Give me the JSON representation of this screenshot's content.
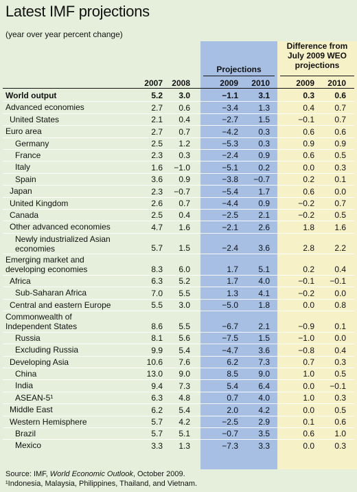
{
  "title": "Latest IMF projections",
  "subtitle": "(year over year percent change)",
  "projections_header": "Projections",
  "difference_header": [
    "Difference from",
    "July 2009 WEO",
    "projections"
  ],
  "years": [
    "2007",
    "2008",
    "2009",
    "2010",
    "2009",
    "2010"
  ],
  "rows": [
    {
      "label": "World output",
      "indent": 0,
      "bold": true,
      "values": [
        "5.2",
        "3.0",
        "−1.1",
        "3.1",
        "0.3",
        "0.6"
      ]
    },
    {
      "label": "Advanced economies",
      "indent": 0,
      "values": [
        "2.7",
        "0.6",
        "−3.4",
        "1.3",
        "0.4",
        "0.7"
      ]
    },
    {
      "label": "United States",
      "indent": 1,
      "values": [
        "2.1",
        "0.4",
        "−2.7",
        "1.5",
        "−0.1",
        "0.7"
      ]
    },
    {
      "label": "Euro area",
      "indent": 0,
      "values": [
        "2.7",
        "0.7",
        "−4.2",
        "0.3",
        "0.6",
        "0.6"
      ]
    },
    {
      "label": "Germany",
      "indent": 2,
      "values": [
        "2.5",
        "1.2",
        "−5.3",
        "0.3",
        "0.9",
        "0.9"
      ]
    },
    {
      "label": "France",
      "indent": 2,
      "values": [
        "2.3",
        "0.3",
        "−2.4",
        "0.9",
        "0.6",
        "0.5"
      ]
    },
    {
      "label": "Italy",
      "indent": 2,
      "values": [
        "1.6",
        "−1.0",
        "−5.1",
        "0.2",
        "0.0",
        "0.3"
      ]
    },
    {
      "label": "Spain",
      "indent": 2,
      "values": [
        "3.6",
        "0.9",
        "−3.8",
        "−0.7",
        "0.2",
        "0.1"
      ]
    },
    {
      "label": "Japan",
      "indent": 1,
      "values": [
        "2.3",
        "−0.7",
        "−5.4",
        "1.7",
        "0.6",
        "0.0"
      ]
    },
    {
      "label": "United Kingdom",
      "indent": 1,
      "values": [
        "2.6",
        "0.7",
        "−4.4",
        "0.9",
        "−0.2",
        "0.7"
      ]
    },
    {
      "label": "Canada",
      "indent": 1,
      "values": [
        "2.5",
        "0.4",
        "−2.5",
        "2.1",
        "−0.2",
        "0.5"
      ]
    },
    {
      "label": "Other advanced economies",
      "indent": 1,
      "values": [
        "4.7",
        "1.6",
        "−2.1",
        "2.6",
        "1.8",
        "1.6"
      ]
    },
    {
      "label": "Newly industrialized Asian economies",
      "label_lines": [
        "Newly industrialized Asian",
        "economies"
      ],
      "indent": 2,
      "values": [
        "5.7",
        "1.5",
        "−2.4",
        "3.6",
        "2.8",
        "2.2"
      ]
    },
    {
      "label": "Emerging market and developing economies",
      "label_lines": [
        "Emerging market and",
        "developing economies"
      ],
      "indent": 0,
      "values": [
        "8.3",
        "6.0",
        "1.7",
        "5.1",
        "0.2",
        "0.4"
      ]
    },
    {
      "label": "Africa",
      "indent": 1,
      "values": [
        "6.3",
        "5.2",
        "1.7",
        "4.0",
        "−0.1",
        "−0.1"
      ]
    },
    {
      "label": "Sub-Saharan Africa",
      "indent": 2,
      "values": [
        "7.0",
        "5.5",
        "1.3",
        "4.1",
        "−0.2",
        "0.0"
      ]
    },
    {
      "label": "Central and eastern Europe",
      "indent": 1,
      "values": [
        "5.5",
        "3.0",
        "−5.0",
        "1.8",
        "0.0",
        "0.8"
      ]
    },
    {
      "label": "Commonwealth of Independent States",
      "label_lines": [
        "Commonwealth of",
        "Independent States"
      ],
      "indent": 0,
      "values": [
        "8.6",
        "5.5",
        "−6.7",
        "2.1",
        "−0.9",
        "0.1"
      ]
    },
    {
      "label": "Russia",
      "indent": 2,
      "values": [
        "8.1",
        "5.6",
        "−7.5",
        "1.5",
        "−1.0",
        "0.0"
      ]
    },
    {
      "label": "Excluding Russia",
      "indent": 2,
      "values": [
        "9.9",
        "5.4",
        "−4.7",
        "3.6",
        "−0.8",
        "0.4"
      ]
    },
    {
      "label": "Developing Asia",
      "indent": 1,
      "values": [
        "10.6",
        "7.6",
        "6.2",
        "7.3",
        "0.7",
        "0.3"
      ]
    },
    {
      "label": "China",
      "indent": 2,
      "values": [
        "13.0",
        "9.0",
        "8.5",
        "9.0",
        "1.0",
        "0.5"
      ]
    },
    {
      "label": "India",
      "indent": 2,
      "values": [
        "9.4",
        "7.3",
        "5.4",
        "6.4",
        "0.0",
        "−0.1"
      ]
    },
    {
      "label": "ASEAN-5¹",
      "indent": 2,
      "values": [
        "6.3",
        "4.8",
        "0.7",
        "4.0",
        "1.0",
        "0.3"
      ]
    },
    {
      "label": "Middle East",
      "indent": 1,
      "values": [
        "6.2",
        "5.4",
        "2.0",
        "4.2",
        "0.0",
        "0.5"
      ]
    },
    {
      "label": "Western Hemisphere",
      "indent": 1,
      "values": [
        "5.7",
        "4.2",
        "−2.5",
        "2.9",
        "0.1",
        "0.6"
      ]
    },
    {
      "label": "Brazil",
      "indent": 2,
      "values": [
        "5.7",
        "5.1",
        "−0.7",
        "3.5",
        "0.6",
        "1.0"
      ]
    },
    {
      "label": "Mexico",
      "indent": 2,
      "values": [
        "3.3",
        "1.3",
        "−7.3",
        "3.3",
        "0.0",
        "0.3"
      ]
    }
  ],
  "source_prefix": "Source: IMF, ",
  "source_italic": "World Economic Outlook",
  "source_suffix": ", October 2009.",
  "footnote": "¹Indonesia, Malaysia, Philippines, Thailand, and Vietnam.",
  "colors": {
    "background": "#e6efdb",
    "projections": "#a6bfe3",
    "difference": "#f6f1c6"
  }
}
